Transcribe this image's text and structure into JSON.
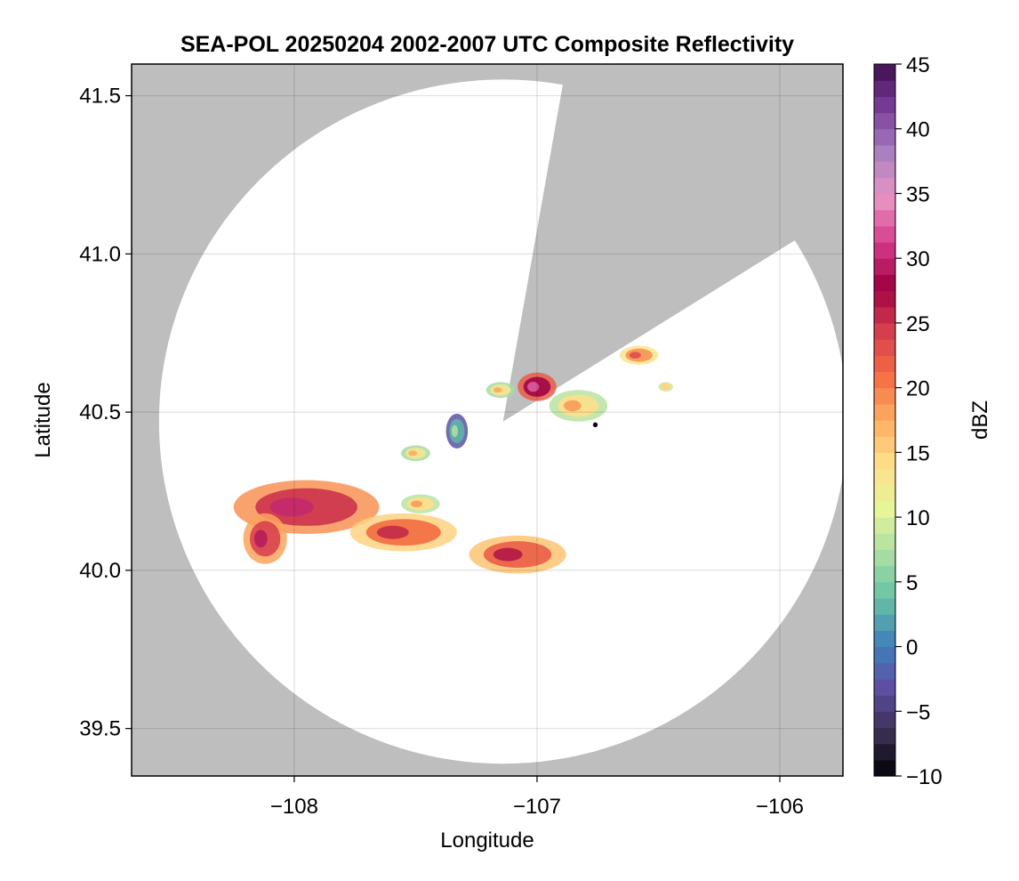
{
  "chart_data": {
    "type": "heatmap",
    "title": "SEA-POL 20250204 2002-2007 UTC Composite Reflectivity",
    "xlabel": "Longitude",
    "ylabel": "Latitude",
    "xlim": [
      -108.67,
      -105.74
    ],
    "ylim": [
      39.35,
      41.6
    ],
    "x_ticks": [
      -108,
      -107,
      -106
    ],
    "x_tick_labels": [
      "−108",
      "−107",
      "−106"
    ],
    "y_ticks": [
      39.5,
      40.0,
      40.5,
      41.0,
      41.5
    ],
    "y_tick_labels": [
      "39.5",
      "40.0",
      "40.5",
      "41.0",
      "41.5"
    ],
    "grid": true,
    "background_color": "#bebebe",
    "radar": {
      "center_lon": -107.14,
      "center_lat": 40.47,
      "coverage_radius_km": 120,
      "blocked_sector_degrees": [
        10,
        58
      ]
    },
    "colorbar": {
      "label": "dBZ",
      "range": [
        -10,
        45
      ],
      "ticks": [
        -10,
        -5,
        0,
        5,
        10,
        15,
        20,
        25,
        30,
        35,
        40,
        45
      ],
      "tick_labels": [
        "−10",
        "−5",
        "0",
        "5",
        "10",
        "15",
        "20",
        "25",
        "30",
        "35",
        "40",
        "45"
      ],
      "colors": [
        "#000004",
        "#3b3054",
        "#5e4fa2",
        "#3f82bb",
        "#66c2a5",
        "#abdda4",
        "#e6f598",
        "#fee08b",
        "#fdae61",
        "#f46d43",
        "#d53e4f",
        "#9e0142",
        "#d63c8c",
        "#e995c4",
        "#ab80c0",
        "#7a3f9a",
        "#3f0d51"
      ]
    },
    "echoes": [
      {
        "lon": -107.95,
        "lat": 40.2,
        "rx_deg": 0.3,
        "ry_deg": 0.085,
        "dbz": 25
      },
      {
        "lon": -108.12,
        "lat": 40.1,
        "rx_deg": 0.09,
        "ry_deg": 0.08,
        "dbz": 24
      },
      {
        "lon": -107.55,
        "lat": 40.12,
        "rx_deg": 0.22,
        "ry_deg": 0.06,
        "dbz": 21
      },
      {
        "lon": -107.08,
        "lat": 40.05,
        "rx_deg": 0.2,
        "ry_deg": 0.06,
        "dbz": 22
      },
      {
        "lon": -107.48,
        "lat": 40.21,
        "rx_deg": 0.08,
        "ry_deg": 0.03,
        "dbz": 14
      },
      {
        "lon": -107.33,
        "lat": 40.44,
        "rx_deg": 0.045,
        "ry_deg": 0.055,
        "dbz": 3
      },
      {
        "lon": -107.5,
        "lat": 40.37,
        "rx_deg": 0.06,
        "ry_deg": 0.025,
        "dbz": 13
      },
      {
        "lon": -107.15,
        "lat": 40.57,
        "rx_deg": 0.06,
        "ry_deg": 0.025,
        "dbz": 13
      },
      {
        "lon": -107.0,
        "lat": 40.58,
        "rx_deg": 0.08,
        "ry_deg": 0.045,
        "dbz": 28
      },
      {
        "lon": -106.83,
        "lat": 40.52,
        "rx_deg": 0.12,
        "ry_deg": 0.05,
        "dbz": 14
      },
      {
        "lon": -106.58,
        "lat": 40.68,
        "rx_deg": 0.08,
        "ry_deg": 0.03,
        "dbz": 19
      },
      {
        "lon": -106.47,
        "lat": 40.58,
        "rx_deg": 0.03,
        "ry_deg": 0.015,
        "dbz": 15
      },
      {
        "lon": -106.76,
        "lat": 40.46,
        "rx_deg": 0.01,
        "ry_deg": 0.008,
        "dbz": -10
      }
    ]
  }
}
